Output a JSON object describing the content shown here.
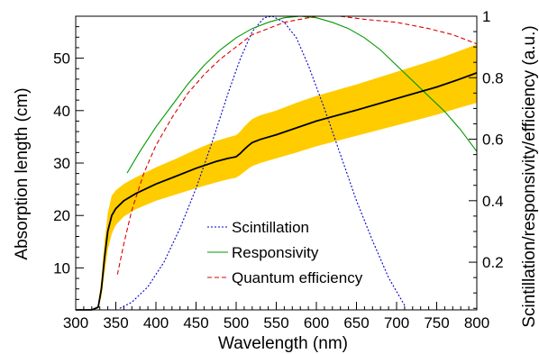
{
  "chart_data": {
    "type": "line",
    "xlabel": "Wavelength (nm)",
    "ylabel": "Absorption length (cm)",
    "y2label": "Scintillation/responsivity/efficiency (a.u.)",
    "xlim": [
      300,
      800
    ],
    "ylim": [
      2,
      58
    ],
    "y2lim": [
      0.045,
      1.0
    ],
    "x_ticks": [
      300,
      350,
      400,
      450,
      500,
      550,
      600,
      650,
      700,
      750,
      800
    ],
    "y_ticks": [
      10,
      20,
      30,
      40,
      50
    ],
    "y2_ticks": [
      0.2,
      0.4,
      0.6,
      0.8,
      1
    ],
    "grid": false,
    "legend_position": "bottom-center",
    "absorption": {
      "x": [
        300,
        320,
        328,
        332,
        336,
        340,
        345,
        350,
        360,
        375,
        400,
        425,
        450,
        475,
        490,
        500,
        505,
        510,
        515,
        520,
        530,
        550,
        575,
        600,
        650,
        700,
        750,
        775,
        800
      ],
      "y": [
        2,
        2,
        2.5,
        6,
        12,
        17,
        20,
        21.3,
        22.8,
        24.2,
        26,
        27.5,
        29,
        30.3,
        30.9,
        31.2,
        31.8,
        32.6,
        33.3,
        33.9,
        34.5,
        35.4,
        36.7,
        38,
        40.1,
        42.3,
        44.5,
        45.8,
        47.2
      ],
      "band_lower": [
        2,
        2,
        2.3,
        4.5,
        9,
        13.5,
        16.5,
        18.2,
        19.8,
        21.2,
        22.8,
        24,
        25.2,
        26.3,
        26.9,
        27.2,
        27.7,
        28.3,
        28.9,
        29.4,
        30,
        30.9,
        32,
        33.2,
        35.2,
        37.2,
        39.2,
        40.4,
        41.5
      ],
      "band_upper": [
        2,
        2,
        2.8,
        8,
        15,
        20.5,
        23.8,
        24.8,
        26,
        27.3,
        29.2,
        30.8,
        32.6,
        34.2,
        34.9,
        35.3,
        36,
        36.9,
        37.7,
        38.4,
        39.1,
        40,
        41.5,
        42.8,
        45,
        47.4,
        49.8,
        51.2,
        52.6
      ]
    },
    "series": [
      {
        "name": "Scintillation",
        "color": "#0000cc",
        "style": "dotted",
        "x": [
          355,
          370,
          390,
          410,
          430,
          450,
          470,
          490,
          505,
          520,
          535,
          545,
          560,
          575,
          590,
          610,
          630,
          650,
          670,
          690,
          711
        ],
        "y": [
          0.05,
          0.07,
          0.12,
          0.2,
          0.31,
          0.44,
          0.59,
          0.75,
          0.86,
          0.95,
          0.995,
          1.0,
          0.98,
          0.93,
          0.84,
          0.7,
          0.55,
          0.4,
          0.27,
          0.15,
          0.055
        ]
      },
      {
        "name": "Responsivity",
        "color": "#009900",
        "style": "solid",
        "x": [
          364,
          380,
          400,
          420,
          440,
          460,
          480,
          500,
          520,
          540,
          560,
          580,
          600,
          620,
          640,
          660,
          680,
          700,
          720,
          740,
          760,
          780,
          800
        ],
        "y": [
          0.49,
          0.56,
          0.64,
          0.71,
          0.78,
          0.84,
          0.89,
          0.93,
          0.96,
          0.98,
          0.995,
          1.0,
          0.995,
          0.98,
          0.96,
          0.93,
          0.89,
          0.84,
          0.79,
          0.74,
          0.69,
          0.63,
          0.56
        ]
      },
      {
        "name": "Quantum efficiency",
        "color": "#dd0000",
        "style": "dashed",
        "x": [
          352,
          360,
          370,
          385,
          400,
          420,
          440,
          460,
          480,
          500,
          520,
          540,
          560,
          580,
          600,
          630,
          660,
          700,
          740,
          770,
          800
        ],
        "y": [
          0.16,
          0.26,
          0.37,
          0.49,
          0.58,
          0.67,
          0.75,
          0.81,
          0.86,
          0.9,
          0.94,
          0.96,
          0.98,
          0.99,
          1.0,
          1.0,
          0.99,
          0.98,
          0.96,
          0.94,
          0.91
        ]
      }
    ]
  }
}
